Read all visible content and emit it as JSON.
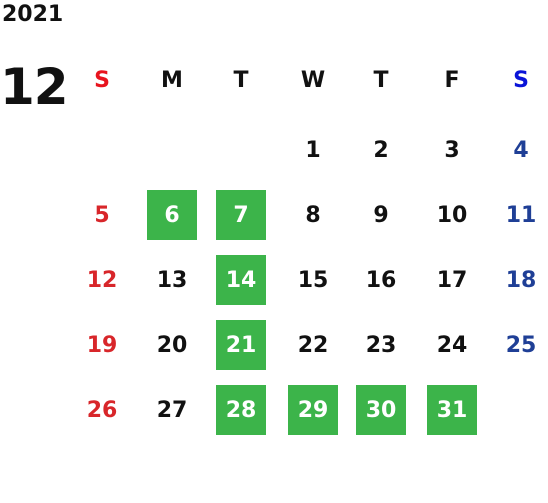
{
  "year": "2021",
  "month": "12",
  "weekdays": [
    "S",
    "M",
    "T",
    "W",
    "T",
    "F",
    "S"
  ],
  "weeks": [
    [
      null,
      null,
      null,
      {
        "day": 1,
        "highlighted": false
      },
      {
        "day": 2,
        "highlighted": false
      },
      {
        "day": 3,
        "highlighted": false
      },
      {
        "day": 4,
        "highlighted": false
      }
    ],
    [
      {
        "day": 5,
        "highlighted": false
      },
      {
        "day": 6,
        "highlighted": true
      },
      {
        "day": 7,
        "highlighted": true
      },
      {
        "day": 8,
        "highlighted": false
      },
      {
        "day": 9,
        "highlighted": false
      },
      {
        "day": 10,
        "highlighted": false
      },
      {
        "day": 11,
        "highlighted": false
      }
    ],
    [
      {
        "day": 12,
        "highlighted": false
      },
      {
        "day": 13,
        "highlighted": false
      },
      {
        "day": 14,
        "highlighted": true
      },
      {
        "day": 15,
        "highlighted": false
      },
      {
        "day": 16,
        "highlighted": false
      },
      {
        "day": 17,
        "highlighted": false
      },
      {
        "day": 18,
        "highlighted": false
      }
    ],
    [
      {
        "day": 19,
        "highlighted": false
      },
      {
        "day": 20,
        "highlighted": false
      },
      {
        "day": 21,
        "highlighted": true
      },
      {
        "day": 22,
        "highlighted": false
      },
      {
        "day": 23,
        "highlighted": false
      },
      {
        "day": 24,
        "highlighted": false
      },
      {
        "day": 25,
        "highlighted": false
      }
    ],
    [
      {
        "day": 26,
        "highlighted": false
      },
      {
        "day": 27,
        "highlighted": false
      },
      {
        "day": 28,
        "highlighted": true
      },
      {
        "day": 29,
        "highlighted": true
      },
      {
        "day": 30,
        "highlighted": true
      },
      {
        "day": 31,
        "highlighted": true
      },
      null
    ]
  ]
}
